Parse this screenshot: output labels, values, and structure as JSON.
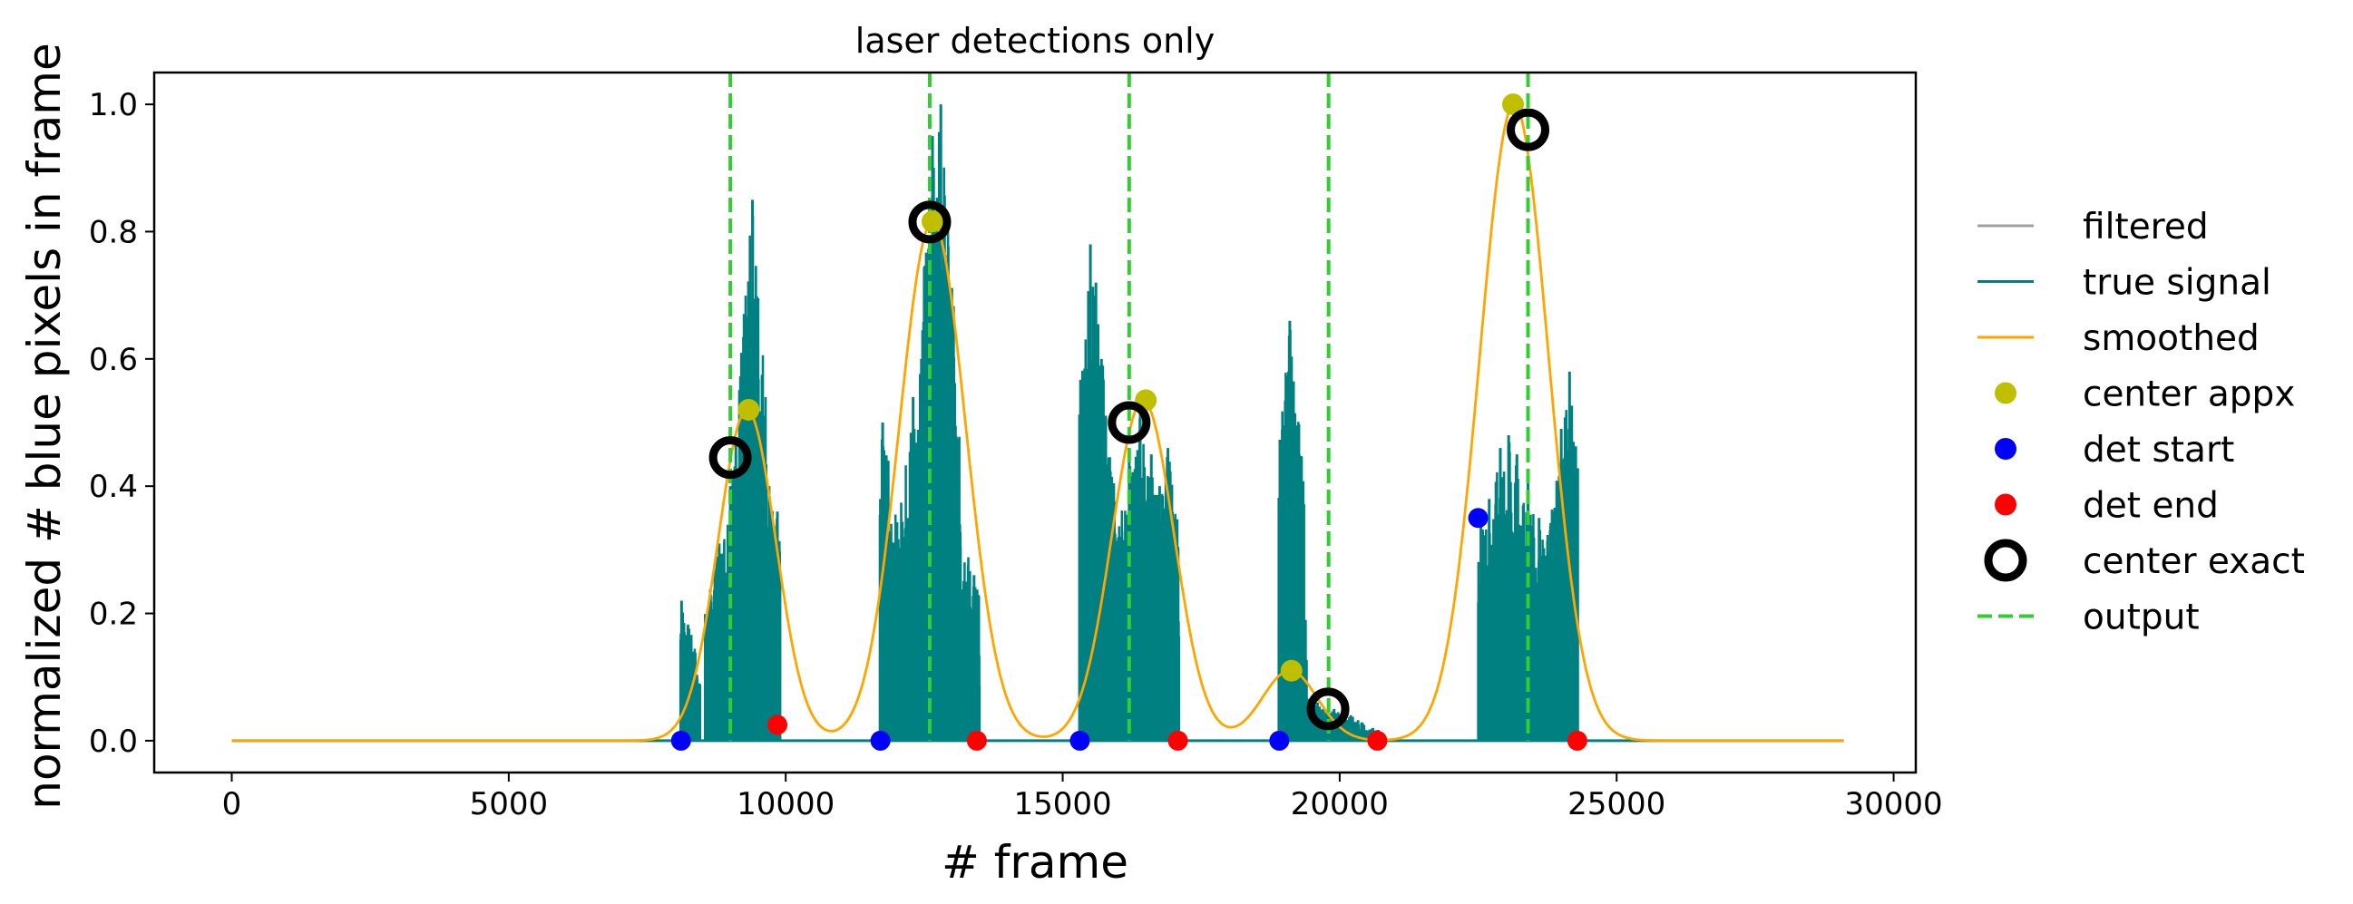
{
  "chart_data": {
    "type": "line",
    "title": "laser detections only",
    "xlabel": "# frame",
    "ylabel": "normalized # blue pixels in frame",
    "xlim": [
      -1400,
      30400
    ],
    "ylim": [
      -0.05,
      1.05
    ],
    "xticks": [
      0,
      5000,
      10000,
      15000,
      20000,
      25000,
      30000
    ],
    "yticks": [
      0.0,
      0.2,
      0.4,
      0.6,
      0.8,
      1.0
    ],
    "xtick_labels": [
      "0",
      "5000",
      "10000",
      "15000",
      "20000",
      "25000",
      "30000"
    ],
    "ytick_labels": [
      "0.0",
      "0.2",
      "0.4",
      "0.6",
      "0.8",
      "1.0"
    ],
    "grid": false,
    "legend_position": "right, outside plot",
    "colors": {
      "filtered": "#a0a0a0",
      "true_signal": "#008080",
      "smoothed": "#ffa500",
      "center_appx": "#bfbf00",
      "det_start": "#0000ff",
      "det_end": "#ff0000",
      "center_exact": "#000000",
      "output": "#32cd32"
    },
    "legend": [
      {
        "key": "filtered",
        "label": "filtered",
        "style": "line"
      },
      {
        "key": "true_signal",
        "label": "true signal",
        "style": "line"
      },
      {
        "key": "smoothed",
        "label": "smoothed",
        "style": "line"
      },
      {
        "key": "center_appx",
        "label": "center appx",
        "style": "dot"
      },
      {
        "key": "det_start",
        "label": "det start",
        "style": "dot"
      },
      {
        "key": "det_end",
        "label": "det end",
        "style": "dot"
      },
      {
        "key": "center_exact",
        "label": "center exact",
        "style": "ring"
      },
      {
        "key": "output",
        "label": "output",
        "style": "dashed"
      }
    ],
    "true_signal_bursts": [
      {
        "start": 8100,
        "end": 9900,
        "spikes": [
          [
            8120,
            0.22
          ],
          [
            8200,
            0.16
          ],
          [
            8800,
            0.31
          ],
          [
            9000,
            0.4
          ],
          [
            9100,
            0.47
          ],
          [
            9300,
            0.48
          ],
          [
            9400,
            0.85
          ],
          [
            9500,
            0.45
          ],
          [
            9700,
            0.4
          ],
          [
            9850,
            0.36
          ]
        ]
      },
      {
        "start": 11700,
        "end": 13500,
        "spikes": [
          [
            11750,
            0.5
          ],
          [
            11850,
            0.44
          ],
          [
            12000,
            0.32
          ],
          [
            12200,
            0.35
          ],
          [
            12300,
            0.54
          ],
          [
            12450,
            0.6
          ],
          [
            12600,
            0.77
          ],
          [
            12650,
            0.95
          ],
          [
            12700,
            0.65
          ],
          [
            12800,
            1.0
          ],
          [
            12900,
            0.7
          ],
          [
            13100,
            0.4
          ],
          [
            13400,
            0.26
          ]
        ]
      },
      {
        "start": 15300,
        "end": 17100,
        "spikes": [
          [
            15350,
            0.31
          ],
          [
            15400,
            0.36
          ],
          [
            15500,
            0.78
          ],
          [
            15600,
            0.72
          ],
          [
            15700,
            0.6
          ],
          [
            16200,
            0.45
          ],
          [
            16400,
            0.52
          ],
          [
            16600,
            0.45
          ],
          [
            16750,
            0.4
          ],
          [
            16900,
            0.46
          ],
          [
            17050,
            0.28
          ]
        ]
      },
      {
        "start": 18900,
        "end": 20700,
        "spikes": [
          [
            18950,
            0.17
          ],
          [
            19050,
            0.22
          ],
          [
            19100,
            0.66
          ],
          [
            19150,
            0.3
          ],
          [
            19300,
            0.08
          ],
          [
            19600,
            0.06
          ],
          [
            19900,
            0.05
          ],
          [
            20200,
            0.04
          ],
          [
            20600,
            0.02
          ]
        ]
      },
      {
        "start": 22500,
        "end": 24300,
        "spikes": [
          [
            22550,
            0.35
          ],
          [
            22700,
            0.38
          ],
          [
            22900,
            0.46
          ],
          [
            23050,
            0.48
          ],
          [
            23200,
            0.45
          ],
          [
            23400,
            0.41
          ],
          [
            23600,
            0.35
          ],
          [
            23800,
            0.33
          ],
          [
            24000,
            0.49
          ],
          [
            24150,
            0.58
          ],
          [
            24250,
            0.44
          ]
        ]
      }
    ],
    "smoothed_gaussians": [
      {
        "center": 9300,
        "amplitude": 0.52,
        "sigma": 520
      },
      {
        "center": 12650,
        "amplitude": 0.816,
        "sigma": 600
      },
      {
        "center": 16450,
        "amplitude": 0.535,
        "sigma": 560
      },
      {
        "center": 19100,
        "amplitude": 0.11,
        "sigma": 500
      },
      {
        "center": 23150,
        "amplitude": 1.0,
        "sigma": 620
      }
    ],
    "center_appx": [
      [
        9330,
        0.52
      ],
      [
        12650,
        0.816
      ],
      [
        16500,
        0.535
      ],
      [
        19130,
        0.11
      ],
      [
        23130,
        1.0
      ]
    ],
    "det_start": [
      [
        8110,
        0.0
      ],
      [
        11710,
        0.0
      ],
      [
        15310,
        0.0
      ],
      [
        18910,
        0.0
      ],
      [
        22500,
        0.35
      ]
    ],
    "det_end": [
      [
        9850,
        0.025
      ],
      [
        13450,
        0.0
      ],
      [
        17080,
        0.0
      ],
      [
        20680,
        0.0
      ],
      [
        24290,
        0.0
      ]
    ],
    "center_exact": [
      [
        9000,
        0.445
      ],
      [
        12600,
        0.815
      ],
      [
        16200,
        0.5
      ],
      [
        19790,
        0.05
      ],
      [
        23400,
        0.96
      ]
    ],
    "output_lines": [
      9000,
      12600,
      16200,
      19800,
      23400
    ]
  }
}
